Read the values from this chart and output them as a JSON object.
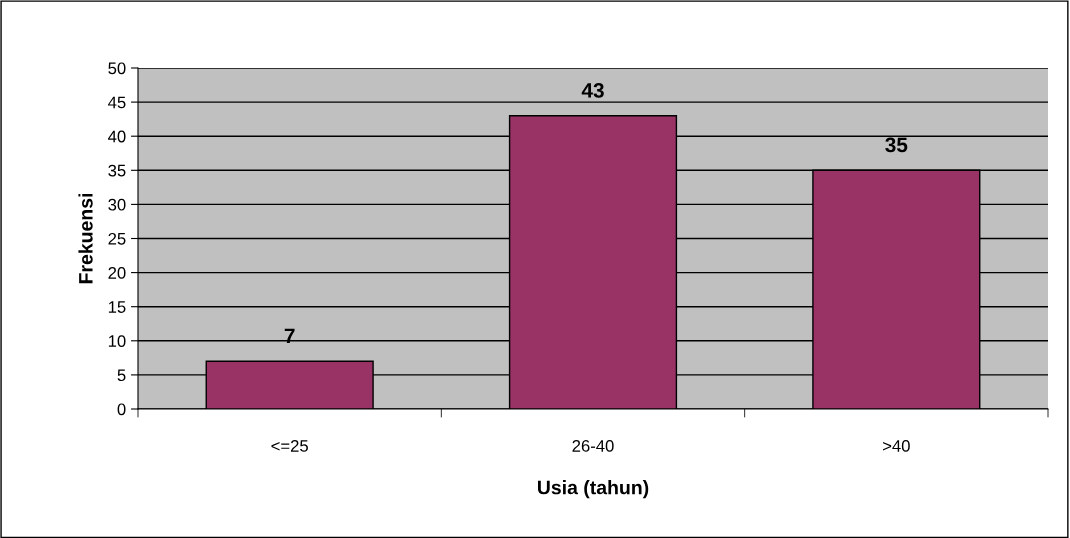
{
  "chart_data": {
    "type": "bar",
    "xlabel": "Usia (tahun)",
    "ylabel": "Frekuensi",
    "categories": [
      "<=25",
      "26-40",
      ">40"
    ],
    "values": [
      7,
      43,
      35
    ],
    "color": "#993366",
    "ylim": [
      0,
      50
    ],
    "yticks": [
      0,
      5,
      10,
      15,
      20,
      25,
      30,
      35,
      40,
      45,
      50
    ],
    "grid": "y",
    "data_labels": true
  }
}
